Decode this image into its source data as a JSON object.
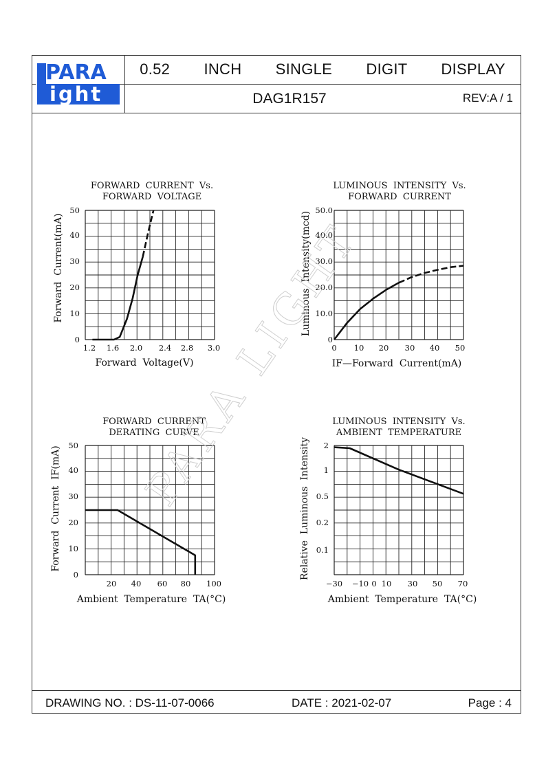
{
  "header": {
    "logo": {
      "line1": "PARA",
      "line2": "ight",
      "brand_color": "#1f5bd6"
    },
    "title": "0.52   INCH   SINGLE   DIGIT   DISPLAY",
    "part_number": "DAG1R157",
    "revision": "REV:A / 1"
  },
  "footer": {
    "drawing_no": "DRAWING NO. : DS-11-07-0066",
    "date": "DATE : 2021-02-07",
    "page": "Page : 4"
  },
  "watermark": "PARA LIGHT",
  "chart_data": [
    {
      "type": "line",
      "title": [
        "FORWARD  CURRENT  Vs.",
        "FORWARD  VOLTAGE"
      ],
      "xlabel": "Forward  Voltage(V)",
      "ylabel": "Forward  Current(mA)",
      "xlim": [
        1.2,
        3.0
      ],
      "ylim": [
        0,
        50
      ],
      "x_ticks": [
        "1.2",
        "1.6",
        "2.0",
        "2.4",
        "2.8",
        "3.0"
      ],
      "y_ticks": [
        "0",
        "10",
        "20",
        "30",
        "40",
        "50"
      ],
      "grid": true,
      "series": [
        {
          "style": "solid",
          "points": [
            [
              1.3,
              0
            ],
            [
              1.6,
              0
            ],
            [
              1.68,
              1
            ],
            [
              1.78,
              8
            ],
            [
              1.86,
              16
            ],
            [
              1.93,
              25
            ],
            [
              2.0,
              32
            ]
          ]
        },
        {
          "style": "dashed",
          "points": [
            [
              2.0,
              32
            ],
            [
              2.08,
              42
            ],
            [
              2.15,
              50
            ]
          ]
        }
      ]
    },
    {
      "type": "line",
      "title": [
        "LUMINOUS  INTENSITY  Vs.",
        "FORWARD  CURRENT"
      ],
      "xlabel": "IF—Forward  Current(mA)",
      "ylabel": "Luminous  Intensity(mcd)",
      "xlim": [
        0,
        50
      ],
      "ylim": [
        0,
        50
      ],
      "x_ticks": [
        "0",
        "10",
        "20",
        "30",
        "40",
        "50"
      ],
      "y_ticks": [
        "0",
        "10.0",
        "20.0",
        "30.0",
        "40.0",
        "50.0"
      ],
      "grid": true,
      "series": [
        {
          "style": "solid",
          "points": [
            [
              0,
              0
            ],
            [
              5,
              6.5
            ],
            [
              10,
              11.8
            ],
            [
              15,
              15.8
            ],
            [
              20,
              19.2
            ],
            [
              25,
              22.0
            ]
          ]
        },
        {
          "style": "dashed",
          "points": [
            [
              25,
              22.0
            ],
            [
              30,
              24.2
            ],
            [
              35,
              25.8
            ],
            [
              40,
              27.0
            ],
            [
              45,
              28.0
            ],
            [
              50,
              28.6
            ]
          ]
        }
      ]
    },
    {
      "type": "line",
      "title": [
        "FORWARD  CURRENT",
        "DERATING  CURVE"
      ],
      "xlabel": "Ambient  Temperature  TA(°C)",
      "ylabel": "Forward  Current  IF(mA)",
      "xlim": [
        0,
        100
      ],
      "ylim": [
        0,
        50
      ],
      "x_ticks": [
        "20",
        "40",
        "60",
        "80",
        "100"
      ],
      "y_ticks": [
        "0",
        "10",
        "20",
        "30",
        "40",
        "50"
      ],
      "grid": true,
      "series": [
        {
          "style": "solid",
          "points": [
            [
              0,
              25
            ],
            [
              25,
              25
            ],
            [
              85,
              7.5
            ],
            [
              85,
              0
            ]
          ]
        }
      ]
    },
    {
      "type": "line",
      "title": [
        "LUMINOUS  INTENSITY  Vs.",
        "AMBIENT  TEMPERATURE"
      ],
      "xlabel": "Ambient  Temperature  TA(°C)",
      "ylabel": "Relative  Luminous  Intensity",
      "xlim": [
        -30,
        70
      ],
      "ylim": [
        0,
        2
      ],
      "x_ticks": [
        "−30",
        "−10",
        "0",
        "10",
        "30",
        "50",
        "70"
      ],
      "y_ticks": [
        "0.1",
        "0.2",
        "0.5",
        "1",
        "2"
      ],
      "grid": true,
      "series": [
        {
          "style": "solid",
          "points": [
            [
              -30,
              1.9
            ],
            [
              -18,
              1.85
            ],
            [
              20,
              1.0
            ],
            [
              70,
              0.5
            ]
          ]
        }
      ]
    }
  ]
}
